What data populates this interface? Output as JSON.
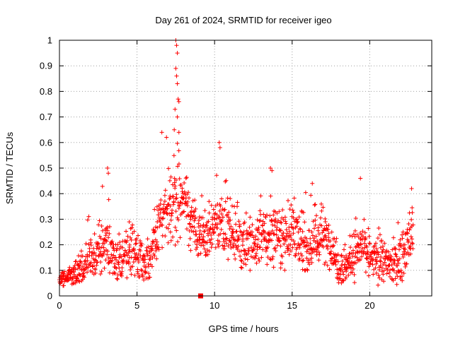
{
  "chart_data": {
    "type": "scatter",
    "title": "Day 261 of 2024, SRMTID for receiver igeo",
    "xlabel": "GPS time / hours",
    "ylabel": "SRMTID / TECUs",
    "xlim": [
      0,
      24
    ],
    "ylim": [
      0,
      1
    ],
    "xticks": [
      0,
      5,
      10,
      15,
      20
    ],
    "xtick_labels": [
      "0",
      "5",
      "10",
      "15",
      "20"
    ],
    "yticks": [
      0,
      0.1,
      0.2,
      0.3,
      0.4,
      0.5,
      0.6,
      0.7,
      0.8,
      0.9,
      1
    ],
    "ytick_labels": [
      "0",
      "0.1",
      "0.2",
      "0.3",
      "0.4",
      "0.5",
      "0.6",
      "0.7",
      "0.8",
      "0.9",
      "1"
    ],
    "grid": true,
    "marker": "+",
    "color": "#ff0000",
    "series": [
      {
        "name": "SRMTID",
        "profile": {
          "x": [
            0.0,
            0.5,
            1.0,
            1.5,
            2.0,
            2.5,
            3.0,
            3.5,
            4.0,
            4.5,
            5.0,
            5.5,
            6.0,
            6.5,
            7.0,
            7.5,
            8.0,
            8.5,
            9.0,
            9.5,
            10.0,
            10.5,
            11.0,
            11.5,
            12.0,
            12.5,
            13.0,
            13.5,
            14.0,
            14.5,
            15.0,
            15.5,
            16.0,
            16.5,
            17.0,
            17.5,
            18.0,
            18.5,
            19.0,
            19.5,
            20.0,
            20.5,
            21.0,
            21.5,
            22.0,
            22.5,
            22.8
          ],
          "median": [
            0.07,
            0.07,
            0.08,
            0.11,
            0.14,
            0.17,
            0.2,
            0.16,
            0.13,
            0.18,
            0.17,
            0.13,
            0.17,
            0.28,
            0.33,
            0.4,
            0.38,
            0.3,
            0.22,
            0.24,
            0.27,
            0.3,
            0.26,
            0.24,
            0.2,
            0.19,
            0.24,
            0.22,
            0.26,
            0.23,
            0.26,
            0.2,
            0.19,
            0.22,
            0.23,
            0.2,
            0.12,
            0.12,
            0.16,
            0.2,
            0.14,
            0.14,
            0.13,
            0.12,
            0.15,
            0.2,
            0.27
          ],
          "spread": [
            0.03,
            0.03,
            0.04,
            0.06,
            0.08,
            0.09,
            0.1,
            0.09,
            0.08,
            0.09,
            0.09,
            0.07,
            0.09,
            0.12,
            0.14,
            0.16,
            0.12,
            0.1,
            0.09,
            0.1,
            0.11,
            0.11,
            0.1,
            0.1,
            0.09,
            0.09,
            0.1,
            0.1,
            0.11,
            0.1,
            0.1,
            0.09,
            0.09,
            0.1,
            0.1,
            0.09,
            0.07,
            0.07,
            0.08,
            0.09,
            0.07,
            0.07,
            0.07,
            0.07,
            0.08,
            0.09,
            0.1
          ],
          "max": [
            0.12,
            0.13,
            0.15,
            0.25,
            0.35,
            0.38,
            0.5,
            0.3,
            0.28,
            0.35,
            0.3,
            0.22,
            0.33,
            0.64,
            0.75,
            1.0,
            0.55,
            0.42,
            0.4,
            0.45,
            0.6,
            0.5,
            0.42,
            0.4,
            0.34,
            0.3,
            0.4,
            0.36,
            0.5,
            0.38,
            0.42,
            0.36,
            0.44,
            0.36,
            0.38,
            0.3,
            0.22,
            0.2,
            0.3,
            0.46,
            0.25,
            0.26,
            0.3,
            0.25,
            0.4,
            0.3,
            0.42
          ],
          "min": [
            0.04,
            0.04,
            0.05,
            0.06,
            0.07,
            0.08,
            0.1,
            0.08,
            0.05,
            0.08,
            0.08,
            0.06,
            0.08,
            0.15,
            0.18,
            0.2,
            0.25,
            0.15,
            0.1,
            0.12,
            0.12,
            0.15,
            0.12,
            0.12,
            0.1,
            0.1,
            0.12,
            0.1,
            0.12,
            0.1,
            0.12,
            0.1,
            0.1,
            0.1,
            0.12,
            0.1,
            0.04,
            0.03,
            0.05,
            0.1,
            0.05,
            0.04,
            0.04,
            0.04,
            0.05,
            0.1,
            0.15
          ]
        },
        "outliers": [
          {
            "x": 7.5,
            "y": 1.0
          },
          {
            "x": 7.55,
            "y": 0.98
          },
          {
            "x": 7.6,
            "y": 0.95
          },
          {
            "x": 7.5,
            "y": 0.89
          },
          {
            "x": 7.55,
            "y": 0.86
          },
          {
            "x": 7.6,
            "y": 0.83
          },
          {
            "x": 7.65,
            "y": 0.77
          },
          {
            "x": 7.7,
            "y": 0.76
          },
          {
            "x": 7.45,
            "y": 0.73
          },
          {
            "x": 7.6,
            "y": 0.7
          },
          {
            "x": 7.4,
            "y": 0.65
          },
          {
            "x": 6.6,
            "y": 0.64
          },
          {
            "x": 6.9,
            "y": 0.62
          },
          {
            "x": 7.7,
            "y": 0.64
          },
          {
            "x": 10.3,
            "y": 0.6
          },
          {
            "x": 10.35,
            "y": 0.58
          },
          {
            "x": 3.1,
            "y": 0.5
          },
          {
            "x": 3.15,
            "y": 0.48
          },
          {
            "x": 13.6,
            "y": 0.5
          },
          {
            "x": 13.7,
            "y": 0.49
          },
          {
            "x": 19.4,
            "y": 0.46
          },
          {
            "x": 16.3,
            "y": 0.44
          },
          {
            "x": 22.7,
            "y": 0.42
          }
        ],
        "special_marker": {
          "x": 9.1,
          "y": 0.0,
          "shape": "square"
        }
      }
    ]
  }
}
